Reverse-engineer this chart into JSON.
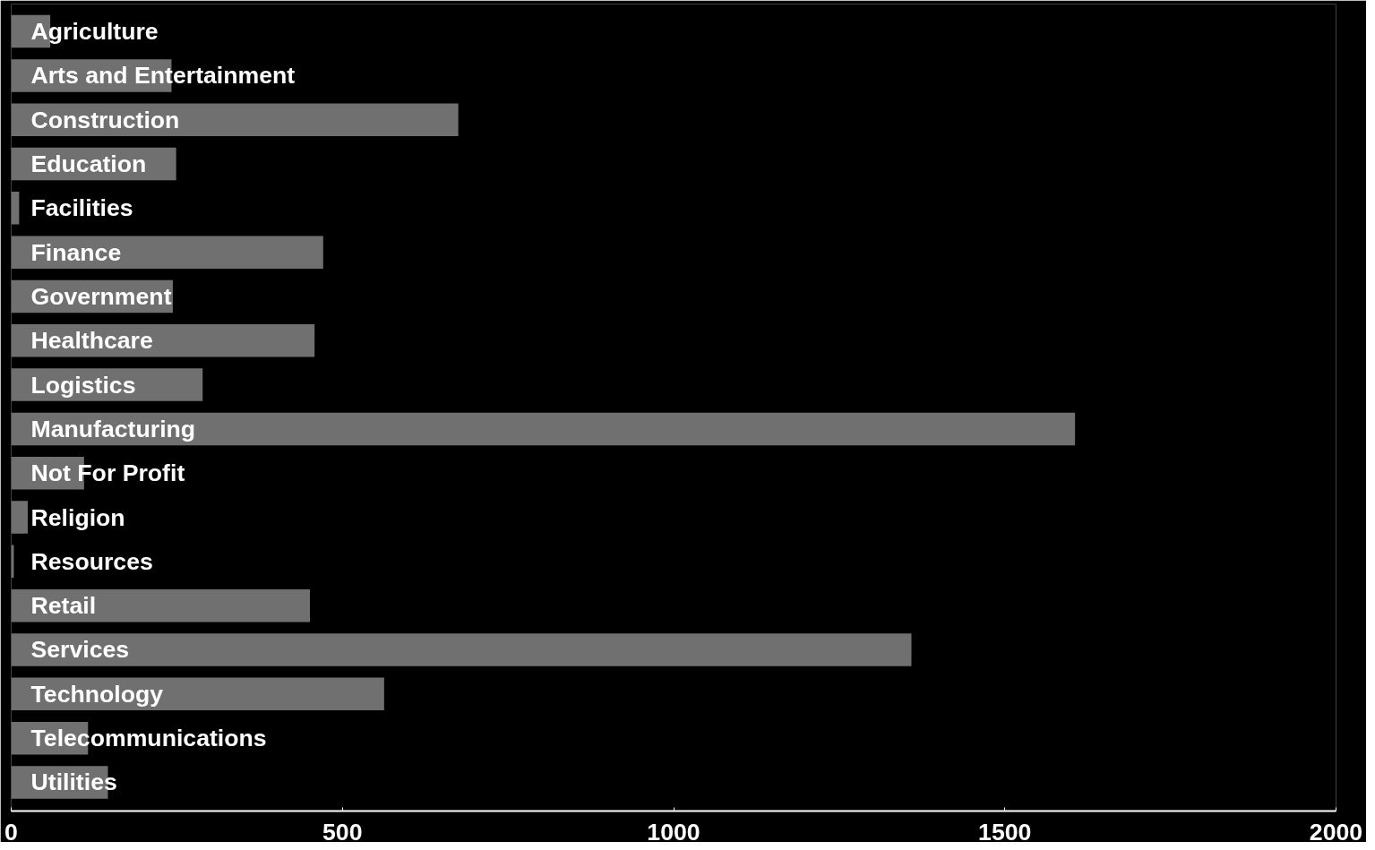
{
  "chart_data": {
    "type": "bar",
    "orientation": "horizontal",
    "categories": [
      "Agriculture",
      "Arts and Entertainment",
      "Construction",
      "Education",
      "Facilities",
      "Finance",
      "Government",
      "Healthcare",
      "Logistics",
      "Manufacturing",
      "Not For Profit",
      "Religion",
      "Resources",
      "Retail",
      "Services",
      "Technology",
      "Telecommunications",
      "Utilities"
    ],
    "values": [
      59,
      242,
      675,
      249,
      12,
      471,
      244,
      458,
      289,
      1606,
      110,
      25,
      4,
      451,
      1359,
      563,
      116,
      146
    ],
    "color": "#707070",
    "xlim": [
      0,
      2000
    ],
    "xticks": [
      0,
      500,
      1000,
      1500,
      2000
    ],
    "grid": false
  }
}
